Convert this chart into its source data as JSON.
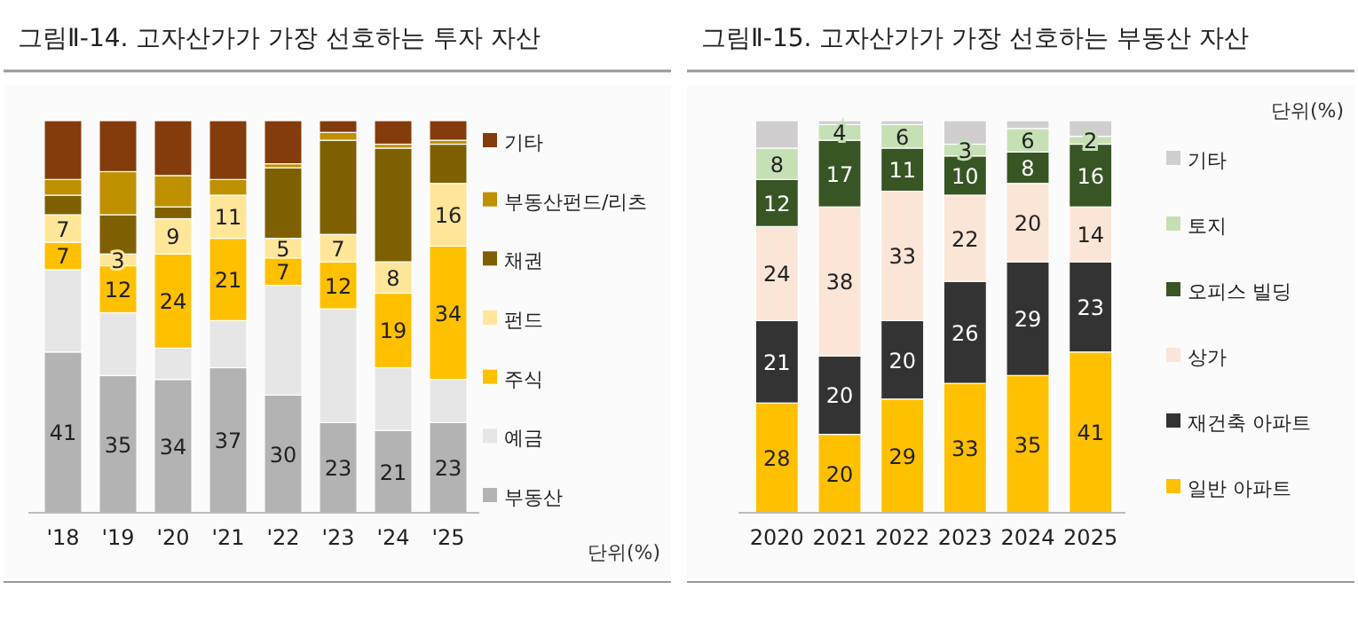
{
  "chart_data": [
    {
      "type": "bar",
      "stacked": true,
      "title": "그림Ⅱ-14. 고자산가가 가장 선호하는 투자 자산",
      "categories": [
        "'18",
        "'19",
        "'20",
        "'21",
        "'22",
        "'23",
        "'24",
        "'25"
      ],
      "ylim": [
        0,
        100
      ],
      "legend": "right",
      "annotations": [
        "단위(%)"
      ],
      "series": [
        {
          "name": "부동산",
          "color": "#b3b3b3",
          "values": [
            41,
            35,
            34,
            37,
            30,
            23,
            21,
            23
          ],
          "value_labels": [
            "41",
            "35",
            "34",
            "37",
            "30",
            "23",
            "21",
            "23"
          ]
        },
        {
          "name": "예금",
          "color": "#e7e6e6",
          "values": [
            21,
            16,
            8,
            12,
            28,
            29,
            16,
            11
          ]
        },
        {
          "name": "주식",
          "color": "#ffc000",
          "values": [
            7,
            12,
            24,
            21,
            7,
            12,
            19,
            34
          ],
          "value_labels": [
            "7",
            "12",
            "24",
            "21",
            "7",
            "12",
            "19",
            "34"
          ]
        },
        {
          "name": "펀드",
          "color": "#ffe699",
          "values": [
            7,
            3,
            9,
            11,
            5,
            7,
            8,
            16
          ],
          "value_labels": [
            "7",
            "3",
            "9",
            "11",
            "5",
            "7",
            "8",
            "16"
          ]
        },
        {
          "name": "채권",
          "color": "#7f6000",
          "values": [
            5,
            10,
            3,
            0,
            18,
            24,
            29,
            10
          ]
        },
        {
          "name": "부동산펀드/리츠",
          "color": "#bf9000",
          "values": [
            4,
            11,
            8,
            4,
            1,
            2,
            1,
            1
          ]
        },
        {
          "name": "기타",
          "color": "#843c0c",
          "values": [
            15,
            13,
            14,
            15,
            11,
            3,
            6,
            5
          ]
        }
      ]
    },
    {
      "type": "bar",
      "stacked": true,
      "title": "그림Ⅱ-15. 고자산가가 가장 선호하는 부동산 자산",
      "categories": [
        "2020",
        "2021",
        "2022",
        "2023",
        "2024",
        "2025"
      ],
      "ylim": [
        0,
        100
      ],
      "legend": "right",
      "annotations": [
        "단위(%)"
      ],
      "series": [
        {
          "name": "일반 아파트",
          "color": "#ffc000",
          "values": [
            28,
            20,
            29,
            33,
            35,
            41
          ],
          "value_labels": [
            "28",
            "20",
            "29",
            "33",
            "35",
            "41"
          ]
        },
        {
          "name": "재건축 아파트",
          "color": "#333333",
          "values": [
            21,
            20,
            20,
            26,
            29,
            23
          ],
          "value_labels": [
            "21",
            "20",
            "20",
            "26",
            "29",
            "23"
          ]
        },
        {
          "name": "상가",
          "color": "#fbe5d6",
          "values": [
            24,
            38,
            33,
            22,
            20,
            14
          ],
          "value_labels": [
            "24",
            "38",
            "33",
            "22",
            "20",
            "14"
          ]
        },
        {
          "name": "오피스 빌딩",
          "color": "#375623",
          "values": [
            12,
            17,
            11,
            10,
            8,
            16
          ],
          "value_labels": [
            "12",
            "17",
            "11",
            "10",
            "8",
            "16"
          ]
        },
        {
          "name": "토지",
          "color": "#c5e0b4",
          "values": [
            8,
            4,
            6,
            3,
            6,
            2
          ],
          "value_labels": [
            "8",
            "4",
            "6",
            "3",
            "6",
            "2"
          ]
        },
        {
          "name": "기타",
          "color": "#d0cece",
          "values": [
            7,
            1,
            1,
            6,
            2,
            4
          ]
        }
      ]
    }
  ]
}
